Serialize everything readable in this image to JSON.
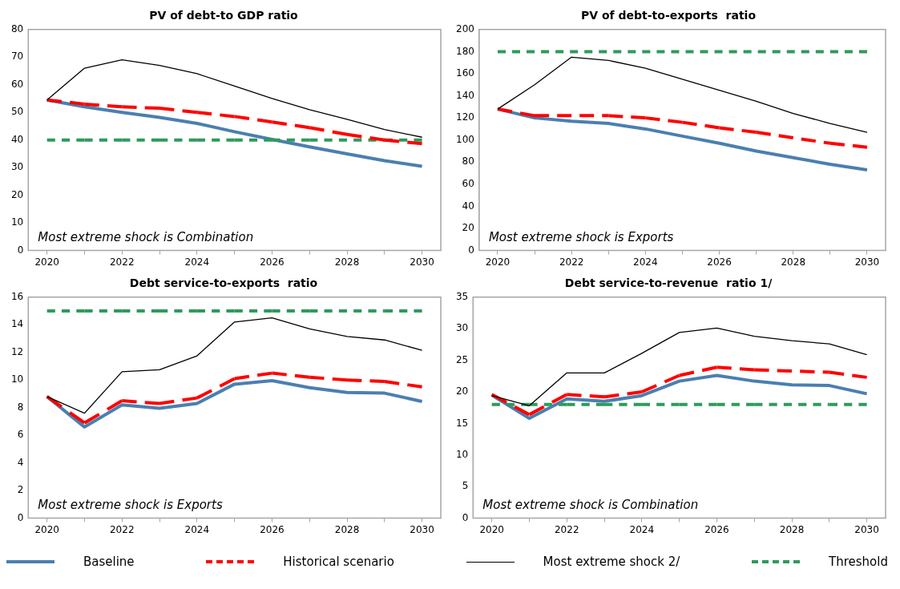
{
  "chart_data": [
    {
      "type": "line",
      "title": "PV of debt-to GDP ratio",
      "categories": [
        "2020",
        null,
        "2022",
        null,
        "2024",
        null,
        "2026",
        null,
        "2028",
        null,
        "2030"
      ],
      "ylim": [
        0,
        80
      ],
      "yticks": [
        0,
        10,
        20,
        30,
        40,
        50,
        60,
        70,
        80
      ],
      "grid": false,
      "legend": "bottom",
      "annotations": [
        "Most extreme shock is Combination"
      ],
      "series": [
        {
          "name": "Baseline",
          "color": "#4a7fb0",
          "line_style": "solid",
          "values": [
            54.5,
            52,
            50,
            48.2,
            46,
            43,
            40.2,
            37.5,
            35,
            32.5,
            30.5
          ]
        },
        {
          "name": "Historical scenario",
          "color": "#ff0000",
          "line_style": "dashed",
          "values": [
            54.5,
            53,
            52,
            51.5,
            50,
            48.5,
            46.5,
            44.5,
            42,
            40,
            38.7
          ]
        },
        {
          "name": "Most extreme shock 2/",
          "color": "#000000",
          "line_style": "solid",
          "values": [
            54.5,
            66,
            69,
            67,
            64,
            59.5,
            55,
            51,
            47.5,
            43.8,
            41
          ]
        },
        {
          "name": "Threshold",
          "color": "#2e9a5c",
          "line_style": "dashed",
          "values": [
            40,
            40,
            40,
            40,
            40,
            40,
            40,
            40,
            40,
            40,
            40
          ]
        }
      ]
    },
    {
      "type": "line",
      "title": "PV of debt-to-exports  ratio",
      "categories": [
        "2020",
        null,
        "2022",
        null,
        "2024",
        null,
        "2026",
        null,
        "2028",
        null,
        "2030"
      ],
      "ylim": [
        0,
        200
      ],
      "yticks": [
        0,
        20,
        40,
        60,
        80,
        100,
        120,
        140,
        160,
        180,
        200
      ],
      "grid": false,
      "annotations": [
        "Most extreme shock is Exports"
      ],
      "series": [
        {
          "color": "#4a7fb0",
          "line_style": "solid",
          "values": [
            128,
            120,
            117,
            115,
            110,
            103.5,
            97,
            90,
            84,
            78,
            73
          ]
        },
        {
          "color": "#ff0000",
          "line_style": "dashed",
          "values": [
            128,
            122,
            122,
            122,
            120,
            116,
            111,
            107,
            102,
            97,
            93.5
          ]
        },
        {
          "color": "#000000",
          "line_style": "solid",
          "values": [
            128,
            150,
            175,
            172,
            165,
            155,
            145,
            135,
            124,
            115,
            107
          ]
        },
        {
          "color": "#2e9a5c",
          "line_style": "dashed",
          "values": [
            180,
            180,
            180,
            180,
            180,
            180,
            180,
            180,
            180,
            180,
            180
          ]
        }
      ]
    },
    {
      "type": "line",
      "title": "Debt service-to-exports  ratio",
      "categories": [
        "2020",
        null,
        "2022",
        null,
        "2024",
        null,
        "2026",
        null,
        "2028",
        null,
        "2030"
      ],
      "ylim": [
        0,
        16
      ],
      "yticks": [
        0,
        2,
        4,
        6,
        8,
        10,
        12,
        14,
        16
      ],
      "grid": false,
      "annotations": [
        "Most extreme shock is Exports"
      ],
      "series": [
        {
          "color": "#4a7fb0",
          "line_style": "solid",
          "values": [
            8.8,
            6.6,
            8.2,
            7.95,
            8.3,
            9.7,
            9.95,
            9.45,
            9.1,
            9.05,
            8.45
          ]
        },
        {
          "color": "#ff0000",
          "line_style": "dashed",
          "values": [
            8.8,
            6.9,
            8.5,
            8.3,
            8.7,
            10.1,
            10.5,
            10.2,
            10,
            9.9,
            9.5
          ]
        },
        {
          "color": "#000000",
          "line_style": "solid",
          "values": [
            8.8,
            7.6,
            10.6,
            10.75,
            11.75,
            14.2,
            14.5,
            13.7,
            13.15,
            12.9,
            12.15
          ]
        },
        {
          "color": "#2e9a5c",
          "line_style": "dashed",
          "values": [
            15,
            15,
            15,
            15,
            15,
            15,
            15,
            15,
            15,
            15,
            15
          ]
        }
      ]
    },
    {
      "type": "line",
      "title": "Debt service-to-revenue  ratio 1/",
      "categories": [
        "2020",
        null,
        "2022",
        null,
        "2024",
        null,
        "2026",
        null,
        "2028",
        null,
        "2030"
      ],
      "ylim": [
        0,
        35
      ],
      "yticks": [
        0,
        5,
        10,
        15,
        20,
        25,
        30,
        35
      ],
      "grid": false,
      "annotations": [
        "Most extreme shock is Combination"
      ],
      "series": [
        {
          "color": "#4a7fb0",
          "line_style": "solid",
          "values": [
            19.5,
            15.8,
            18.9,
            18.5,
            19.4,
            21.7,
            22.6,
            21.7,
            21.1,
            21,
            19.7
          ]
        },
        {
          "color": "#ff0000",
          "line_style": "dashed",
          "values": [
            19.6,
            16.4,
            19.6,
            19.2,
            20,
            22.6,
            23.9,
            23.5,
            23.3,
            23.1,
            22.3
          ]
        },
        {
          "color": "#000000",
          "line_style": "solid",
          "values": [
            19.4,
            17.8,
            23,
            23,
            26.1,
            29.4,
            30.1,
            28.8,
            28.1,
            27.6,
            25.9
          ]
        },
        {
          "color": "#2e9a5c",
          "line_style": "dashed",
          "values": [
            18,
            18,
            18,
            18,
            18,
            18,
            18,
            18,
            18,
            18,
            18
          ]
        }
      ]
    }
  ]
}
